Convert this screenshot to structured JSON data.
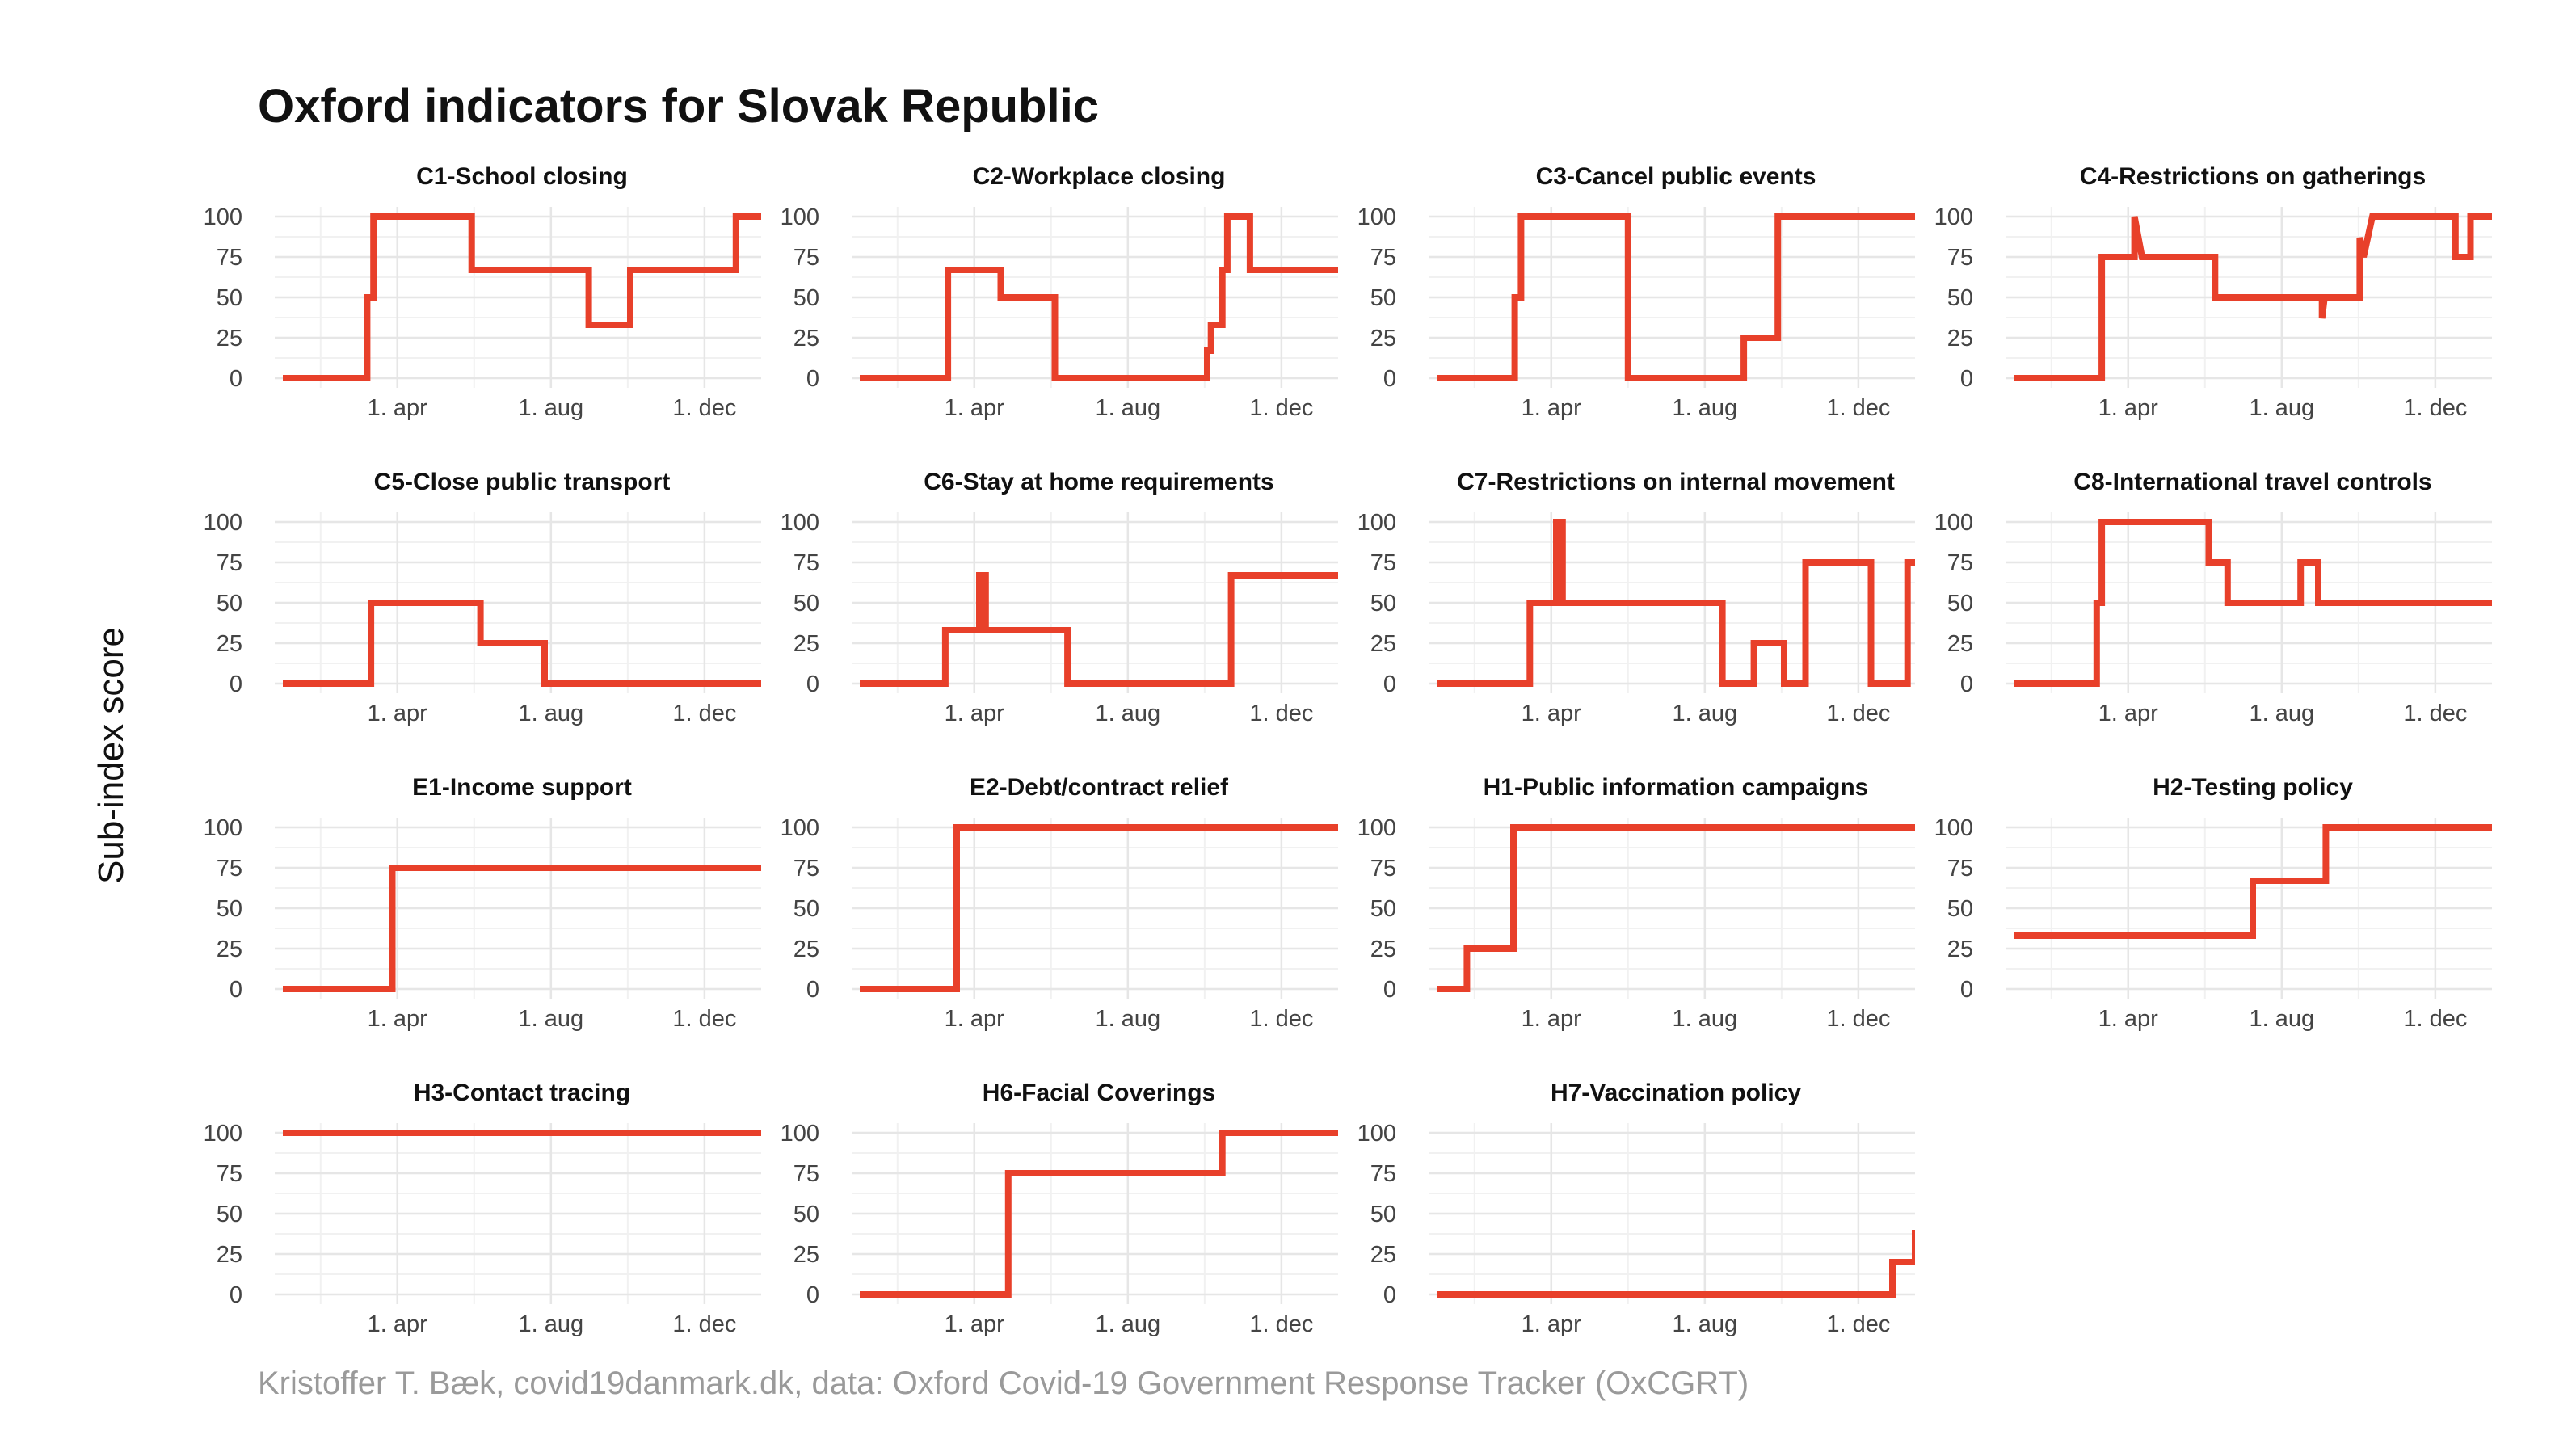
{
  "title": "Oxford indicators for Slovak Republic",
  "ylabel": "Sub-index score",
  "caption": "Kristoffer T. Bæk, covid19danmark.dk, data: Oxford Covid-19 Government Response Tracker (OxCGRT)",
  "colors": {
    "line": "#e8402a",
    "grid": "#e6e6e6",
    "text": "#111111",
    "tick": "#444444",
    "caption": "#9a9a9a"
  },
  "chart_data": [
    {
      "type": "line",
      "title": "C1-School closing",
      "x_domain": [
        0,
        380
      ],
      "ylim": [
        0,
        100
      ],
      "x_ticks": [
        {
          "x": 91,
          "label": "1. apr"
        },
        {
          "x": 213,
          "label": "1. aug"
        },
        {
          "x": 335,
          "label": "1. dec"
        }
      ],
      "y_ticks": [
        0,
        25,
        50,
        75,
        100
      ],
      "x": [
        0,
        67,
        67,
        72,
        72,
        150,
        150,
        243,
        243,
        276,
        276,
        360,
        360,
        380
      ],
      "y": [
        0,
        0,
        50,
        50,
        100,
        100,
        67,
        67,
        33,
        33,
        67,
        67,
        100,
        100
      ]
    },
    {
      "type": "line",
      "title": "C2-Workplace closing",
      "x_domain": [
        0,
        380
      ],
      "ylim": [
        0,
        100
      ],
      "x_ticks": [
        {
          "x": 91,
          "label": "1. apr"
        },
        {
          "x": 213,
          "label": "1. aug"
        },
        {
          "x": 335,
          "label": "1. dec"
        }
      ],
      "y_ticks": [
        0,
        25,
        50,
        75,
        100
      ],
      "x": [
        0,
        70,
        70,
        112,
        112,
        155,
        155,
        276,
        276,
        279,
        279,
        288,
        288,
        292,
        292,
        310,
        310,
        380
      ],
      "y": [
        0,
        0,
        67,
        67,
        50,
        50,
        0,
        0,
        17,
        17,
        33,
        33,
        67,
        67,
        100,
        100,
        67,
        67
      ]
    },
    {
      "type": "line",
      "title": "C3-Cancel public events",
      "x_domain": [
        0,
        380
      ],
      "ylim": [
        0,
        100
      ],
      "x_ticks": [
        {
          "x": 91,
          "label": "1. apr"
        },
        {
          "x": 213,
          "label": "1. aug"
        },
        {
          "x": 335,
          "label": "1. dec"
        }
      ],
      "y_ticks": [
        0,
        25,
        50,
        75,
        100
      ],
      "x": [
        0,
        62,
        62,
        67,
        67,
        152,
        152,
        244,
        244,
        271,
        271,
        400
      ],
      "y": [
        0,
        0,
        50,
        50,
        100,
        100,
        0,
        0,
        25,
        25,
        100,
        100
      ]
    },
    {
      "type": "line",
      "title": "C4-Restrictions on gatherings",
      "x_domain": [
        0,
        380
      ],
      "ylim": [
        0,
        100
      ],
      "x_ticks": [
        {
          "x": 91,
          "label": "1. apr"
        },
        {
          "x": 213,
          "label": "1. aug"
        },
        {
          "x": 335,
          "label": "1. dec"
        }
      ],
      "y_ticks": [
        0,
        25,
        50,
        75,
        100
      ],
      "x": [
        0,
        70,
        70,
        96,
        96,
        102,
        102,
        160,
        160,
        245,
        245,
        247,
        247,
        275,
        275,
        278,
        278,
        285,
        285,
        351,
        351,
        363,
        363,
        400
      ],
      "y": [
        0,
        0,
        75,
        75,
        100,
        75,
        75,
        75,
        50,
        50,
        37,
        50,
        50,
        50,
        87,
        75,
        75,
        100,
        100,
        100,
        75,
        75,
        100,
        100
      ]
    },
    {
      "type": "line",
      "title": "C5-Close public transport",
      "x_domain": [
        0,
        380
      ],
      "ylim": [
        0,
        100
      ],
      "x_ticks": [
        {
          "x": 91,
          "label": "1. apr"
        },
        {
          "x": 213,
          "label": "1. aug"
        },
        {
          "x": 335,
          "label": "1. dec"
        }
      ],
      "y_ticks": [
        0,
        25,
        50,
        75,
        100
      ],
      "x": [
        0,
        70,
        70,
        157,
        157,
        208,
        208,
        400
      ],
      "y": [
        0,
        0,
        50,
        50,
        25,
        25,
        0,
        0
      ]
    },
    {
      "type": "line",
      "title": "C6-Stay at home requirements",
      "x_domain": [
        0,
        380
      ],
      "ylim": [
        0,
        100
      ],
      "x_ticks": [
        {
          "x": 91,
          "label": "1. apr"
        },
        {
          "x": 213,
          "label": "1. aug"
        },
        {
          "x": 335,
          "label": "1. dec"
        }
      ],
      "y_ticks": [
        0,
        25,
        50,
        75,
        100
      ],
      "x": [
        0,
        68,
        68,
        95,
        95,
        100,
        100,
        165,
        165,
        295,
        295,
        400
      ],
      "y": [
        0,
        0,
        33,
        33,
        67,
        67,
        33,
        33,
        0,
        0,
        67,
        67
      ]
    },
    {
      "type": "line",
      "title": "C7-Restrictions on internal movement",
      "x_domain": [
        0,
        380
      ],
      "ylim": [
        0,
        100
      ],
      "x_ticks": [
        {
          "x": 91,
          "label": "1. apr"
        },
        {
          "x": 213,
          "label": "1. aug"
        },
        {
          "x": 335,
          "label": "1. dec"
        }
      ],
      "y_ticks": [
        0,
        25,
        50,
        75,
        100
      ],
      "x": [
        0,
        74,
        74,
        95,
        95,
        100,
        100,
        227,
        227,
        252,
        252,
        276,
        276,
        293,
        293,
        345,
        345,
        374,
        374,
        400
      ],
      "y": [
        0,
        0,
        50,
        50,
        100,
        100,
        50,
        50,
        0,
        0,
        25,
        25,
        0,
        0,
        75,
        75,
        0,
        0,
        75,
        75
      ]
    },
    {
      "type": "line",
      "title": "C8-International travel controls",
      "x_domain": [
        0,
        380
      ],
      "ylim": [
        0,
        100
      ],
      "x_ticks": [
        {
          "x": 91,
          "label": "1. apr"
        },
        {
          "x": 213,
          "label": "1. aug"
        },
        {
          "x": 335,
          "label": "1. dec"
        }
      ],
      "y_ticks": [
        0,
        25,
        50,
        75,
        100
      ],
      "x": [
        0,
        66,
        66,
        70,
        70,
        155,
        155,
        170,
        170,
        228,
        228,
        242,
        242,
        400
      ],
      "y": [
        0,
        0,
        50,
        50,
        100,
        100,
        75,
        75,
        50,
        50,
        75,
        75,
        50,
        50
      ]
    },
    {
      "type": "line",
      "title": "E1-Income support",
      "x_domain": [
        0,
        380
      ],
      "ylim": [
        0,
        100
      ],
      "x_ticks": [
        {
          "x": 91,
          "label": "1. apr"
        },
        {
          "x": 213,
          "label": "1. aug"
        },
        {
          "x": 335,
          "label": "1. dec"
        }
      ],
      "y_ticks": [
        0,
        25,
        50,
        75,
        100
      ],
      "x": [
        0,
        87,
        87,
        400
      ],
      "y": [
        0,
        0,
        75,
        75
      ]
    },
    {
      "type": "line",
      "title": "E2-Debt/contract relief",
      "x_domain": [
        0,
        380
      ],
      "ylim": [
        0,
        100
      ],
      "x_ticks": [
        {
          "x": 91,
          "label": "1. apr"
        },
        {
          "x": 213,
          "label": "1. aug"
        },
        {
          "x": 335,
          "label": "1. dec"
        }
      ],
      "y_ticks": [
        0,
        25,
        50,
        75,
        100
      ],
      "x": [
        0,
        77,
        77,
        400
      ],
      "y": [
        0,
        0,
        100,
        100
      ]
    },
    {
      "type": "line",
      "title": "H1-Public information campaigns",
      "x_domain": [
        0,
        380
      ],
      "ylim": [
        0,
        100
      ],
      "x_ticks": [
        {
          "x": 91,
          "label": "1. apr"
        },
        {
          "x": 213,
          "label": "1. aug"
        },
        {
          "x": 335,
          "label": "1. dec"
        }
      ],
      "y_ticks": [
        0,
        25,
        50,
        75,
        100
      ],
      "x": [
        0,
        24,
        24,
        61,
        61,
        400
      ],
      "y": [
        0,
        0,
        25,
        25,
        100,
        100
      ]
    },
    {
      "type": "line",
      "title": "H2-Testing policy",
      "x_domain": [
        0,
        380
      ],
      "ylim": [
        0,
        100
      ],
      "x_ticks": [
        {
          "x": 91,
          "label": "1. apr"
        },
        {
          "x": 213,
          "label": "1. aug"
        },
        {
          "x": 335,
          "label": "1. dec"
        }
      ],
      "y_ticks": [
        0,
        25,
        50,
        75,
        100
      ],
      "x": [
        0,
        190,
        190,
        248,
        248,
        400
      ],
      "y": [
        33,
        33,
        67,
        67,
        100,
        100
      ]
    },
    {
      "type": "line",
      "title": "H3-Contact tracing",
      "x_domain": [
        0,
        380
      ],
      "ylim": [
        0,
        100
      ],
      "x_ticks": [
        {
          "x": 91,
          "label": "1. apr"
        },
        {
          "x": 213,
          "label": "1. aug"
        },
        {
          "x": 335,
          "label": "1. dec"
        }
      ],
      "y_ticks": [
        0,
        25,
        50,
        75,
        100
      ],
      "x": [
        0,
        400
      ],
      "y": [
        100,
        100
      ]
    },
    {
      "type": "line",
      "title": "H6-Facial Coverings",
      "x_domain": [
        0,
        380
      ],
      "ylim": [
        0,
        100
      ],
      "x_ticks": [
        {
          "x": 91,
          "label": "1. apr"
        },
        {
          "x": 213,
          "label": "1. aug"
        },
        {
          "x": 335,
          "label": "1. dec"
        }
      ],
      "y_ticks": [
        0,
        25,
        50,
        75,
        100
      ],
      "x": [
        0,
        118,
        118,
        288,
        288,
        400
      ],
      "y": [
        0,
        0,
        75,
        75,
        100,
        100
      ]
    },
    {
      "type": "line",
      "title": "H7-Vaccination policy",
      "x_domain": [
        0,
        380
      ],
      "ylim": [
        0,
        100
      ],
      "x_ticks": [
        {
          "x": 91,
          "label": "1. apr"
        },
        {
          "x": 213,
          "label": "1. aug"
        },
        {
          "x": 335,
          "label": "1. dec"
        }
      ],
      "y_ticks": [
        0,
        25,
        50,
        75,
        100
      ],
      "x": [
        0,
        362,
        362,
        382,
        382,
        400
      ],
      "y": [
        0,
        0,
        20,
        20,
        40,
        40
      ]
    }
  ]
}
